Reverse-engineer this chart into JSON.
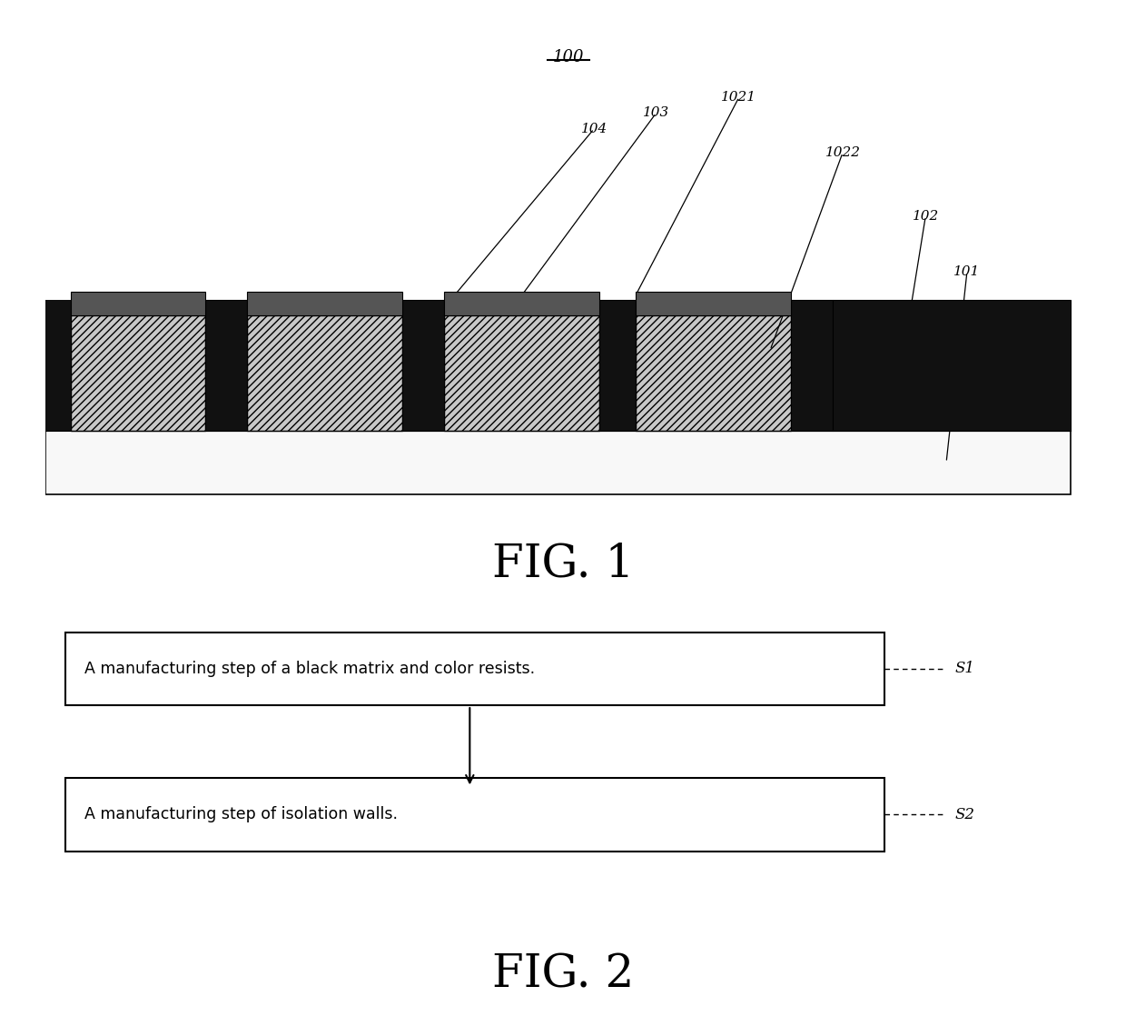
{
  "fig_width": 12.4,
  "fig_height": 11.4,
  "bg_color": "#ffffff",
  "substrate_fc": "#f8f8f8",
  "substrate_ec": "#000000",
  "bm_color": "#111111",
  "cr_fc": "#c8c8c8",
  "cr_ec": "#000000",
  "cr_hatch": "////",
  "cap_fc": "#555555",
  "cap_ec": "#000000",
  "step1_text": "A manufacturing step of a black matrix and color resists.",
  "step1_label": "S1",
  "step2_text": "A manufacturing step of isolation walls.",
  "step2_label": "S2",
  "fig1_caption": "FIG. 1",
  "fig2_caption": "FIG. 2",
  "label_100": "100"
}
